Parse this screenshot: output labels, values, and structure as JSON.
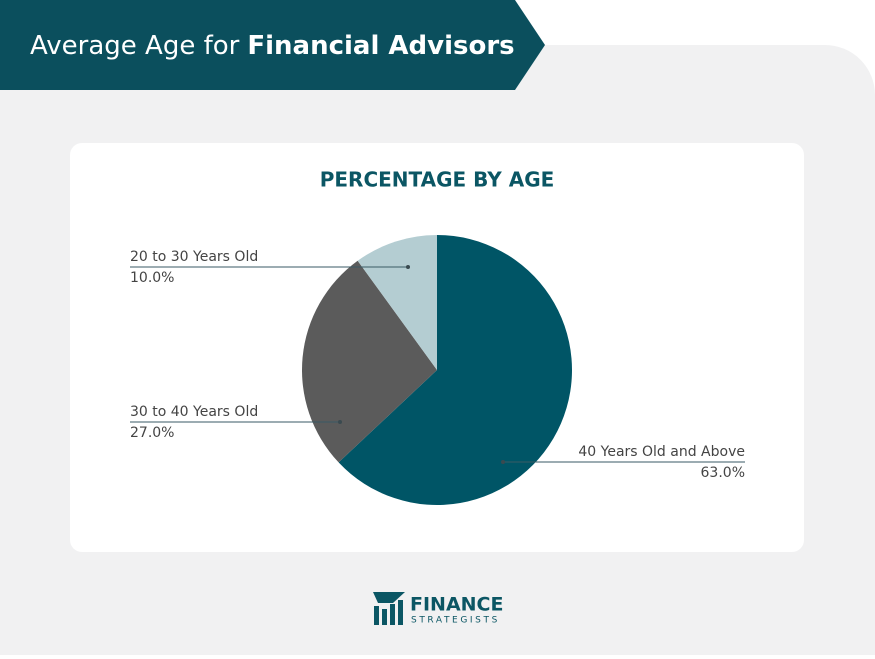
{
  "header": {
    "title_start": "Average Age for",
    "title_bold": "Financial Advisors"
  },
  "chart_data": {
    "type": "pie",
    "title": "PERCENTAGE BY AGE",
    "categories": [
      "40 Years Old and Above",
      "30 to 40 Years Old",
      "20 to 30 Years Old"
    ],
    "values": [
      63,
      27,
      10
    ],
    "value_labels": [
      "63.0%",
      "27.0%",
      "10.0%"
    ],
    "colors": [
      "#005566",
      "#5b5b5b",
      "#b4cdd2"
    ]
  },
  "footer": {
    "logo_top": "FINANCE",
    "logo_bottom": "STRATEGISTS"
  }
}
